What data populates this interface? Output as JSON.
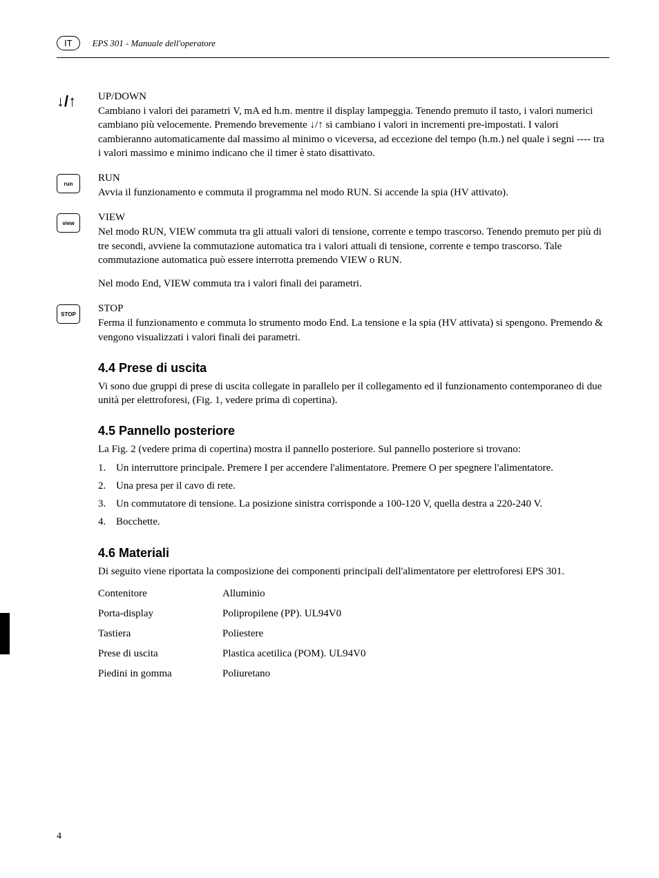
{
  "header": {
    "lang": "IT",
    "title": "EPS 301 - Manuale dell'operatore"
  },
  "items": [
    {
      "icon_type": "updown",
      "title": "UP/DOWN",
      "body": "Cambiano i valori dei parametri V, mA ed h.m. mentre il display lampeggia. Tenendo premuto il tasto, i valori numerici cambiano più velocemente. Premendo brevemente ↓/↑ si cambiano i valori in incrementi pre-impostati. I valori cambieranno automaticamente dal massimo al minimo o viceversa, ad eccezione del tempo (h.m.) nel quale i segni ---- tra i valori massimo e minimo indicano che il timer è stato disattivato."
    },
    {
      "icon_type": "key",
      "key_label": "run",
      "title": "RUN",
      "body": "Avvia il funzionamento e commuta il programma nel modo RUN. Si accende la spia (HV attivato)."
    },
    {
      "icon_type": "key",
      "key_label": "view",
      "title": "VIEW",
      "body": "Nel modo RUN, VIEW commuta tra gli attuali valori di tensione, corrente e tempo trascorso. Tenendo premuto per più di tre secondi, avviene la commutazione automatica tra i valori attuali di tensione, corrente e tempo trascorso. Tale commutazione automatica può essere interrotta premendo VIEW o RUN.",
      "body2": "Nel modo End, VIEW commuta tra i valori finali dei parametri."
    },
    {
      "icon_type": "key",
      "key_label": "STOP",
      "title": "STOP",
      "body": "Ferma il funzionamento e commuta lo strumento modo End. La tensione e la spia (HV attivata) si spengono. Premendo & vengono visualizzati i valori finali dei parametri."
    }
  ],
  "sections": {
    "s44": {
      "heading": "4.4   Prese di uscita",
      "text": "Vi sono due gruppi di prese di uscita collegate in parallelo per il collegamento ed il funzionamento contemporaneo di due unità per elettroforesi, (Fig. 1, vedere prima di copertina)."
    },
    "s45": {
      "heading": "4.5   Pannello posteriore",
      "text": "La Fig. 2 (vedere prima di copertina) mostra il pannello posteriore. Sul pannello posteriore si trovano:",
      "list": [
        "Un interruttore principale. Premere I per accendere l'alimentatore. Premere O per spegnere l'alimentatore.",
        "Una presa per il cavo di rete.",
        "Un commutatore di tensione. La posizione sinistra corrisponde a 100-120 V, quella destra a 220-240 V.",
        "Bocchette."
      ]
    },
    "s46": {
      "heading": "4.6   Materiali",
      "text": "Di seguito viene riportata la composizione dei componenti principali dell'alimentatore per elettroforesi EPS 301.",
      "materials": [
        {
          "label": "Contenitore",
          "value": "Alluminio"
        },
        {
          "label": "Porta-display",
          "value": "Polipropilene (PP). UL94V0"
        },
        {
          "label": "Tastiera",
          "value": "Poliestere"
        },
        {
          "label": "Prese di uscita",
          "value": "Plastica acetilica (POM). UL94V0"
        },
        {
          "label": "Piedini in gomma",
          "value": "Poliuretano"
        }
      ]
    }
  },
  "page_number": "4"
}
